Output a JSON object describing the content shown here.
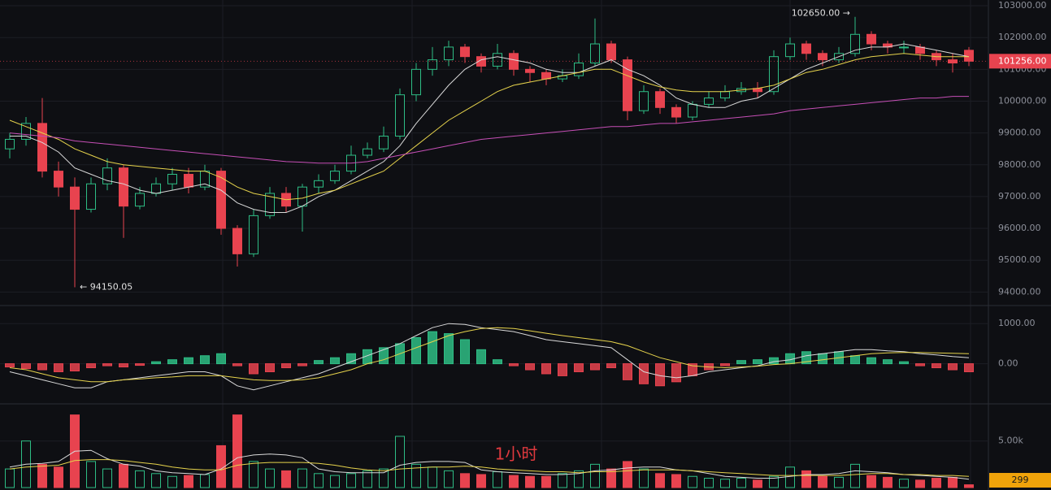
{
  "chart_data": [
    {
      "type": "candlestick",
      "open": [
        98500,
        98800,
        99300,
        97800,
        97300,
        96600,
        97400,
        97900,
        96700,
        97100,
        97400,
        97700,
        97300,
        97800,
        96000,
        95200,
        96400,
        97100,
        96700,
        97300,
        97500,
        97800,
        98300,
        98500,
        98900,
        100200,
        101000,
        101300,
        101700,
        101400,
        101100,
        101500,
        101000,
        100900,
        100700,
        100800,
        101200,
        101800,
        101300,
        99700,
        100300,
        99800,
        99500,
        99900,
        100100,
        100300,
        100400,
        100300,
        101400,
        101800,
        101500,
        101300,
        101500,
        102100,
        101800,
        101700,
        101700,
        101500,
        101300,
        101600
      ],
      "high": [
        99000,
        99500,
        100100,
        98100,
        97600,
        97600,
        98200,
        98000,
        97300,
        97600,
        97900,
        97900,
        98000,
        97900,
        96100,
        96600,
        97300,
        97300,
        97400,
        97700,
        98000,
        98600,
        98700,
        99200,
        100400,
        101200,
        101700,
        101900,
        101800,
        101500,
        101800,
        101600,
        101100,
        101000,
        101000,
        101500,
        102600,
        101900,
        101400,
        100500,
        100400,
        99900,
        100000,
        100300,
        100500,
        100600,
        100600,
        101600,
        102000,
        101900,
        101600,
        101700,
        102650,
        102200,
        101900,
        101900,
        101800,
        101600,
        101500,
        101700
      ],
      "low": [
        98200,
        98600,
        97600,
        97000,
        94150.05,
        96500,
        97200,
        95700,
        96600,
        97000,
        97200,
        97100,
        97200,
        95800,
        94800,
        95100,
        96300,
        96500,
        95900,
        97100,
        97400,
        97700,
        98200,
        98400,
        98800,
        100000,
        100800,
        101100,
        101200,
        100900,
        101000,
        100800,
        100600,
        100500,
        100600,
        100700,
        101100,
        101200,
        99400,
        99600,
        99600,
        99300,
        99400,
        99800,
        100000,
        100200,
        100100,
        100200,
        101300,
        101300,
        101100,
        101200,
        101400,
        101600,
        101500,
        101500,
        101300,
        101100,
        100900,
        101100
      ],
      "close": [
        98800,
        99300,
        97800,
        97300,
        96600,
        97400,
        97900,
        96700,
        97100,
        97400,
        97700,
        97300,
        97800,
        96000,
        95200,
        96400,
        97100,
        96700,
        97300,
        97500,
        97800,
        98300,
        98500,
        98900,
        100200,
        101000,
        101300,
        101700,
        101400,
        101100,
        101500,
        101000,
        100900,
        100700,
        100800,
        101200,
        101800,
        101300,
        99700,
        100300,
        99800,
        99500,
        99900,
        100100,
        100300,
        100400,
        100300,
        101400,
        101800,
        101500,
        101300,
        101500,
        102100,
        101800,
        101700,
        101700,
        101500,
        101300,
        101200,
        101256
      ],
      "up_color": "#2ebd85",
      "down_color": "#e8434f",
      "lines": [
        {
          "color": "#d9d9d9",
          "values": [
            98900,
            98900,
            98700,
            98400,
            97900,
            97700,
            97500,
            97400,
            97200,
            97100,
            97200,
            97300,
            97400,
            97200,
            96800,
            96600,
            96500,
            96500,
            96700,
            97000,
            97200,
            97500,
            97800,
            98100,
            98600,
            99300,
            99900,
            100500,
            101000,
            101300,
            101400,
            101300,
            101200,
            101000,
            100900,
            100900,
            101100,
            101300,
            101000,
            100800,
            100500,
            100100,
            99900,
            99800,
            99800,
            100000,
            100100,
            100400,
            100700,
            101000,
            101200,
            101400,
            101600,
            101700,
            101700,
            101800,
            101700,
            101600,
            101500,
            101400
          ]
        },
        {
          "color": "#e6d34c",
          "values": [
            99400,
            99200,
            99000,
            98800,
            98500,
            98300,
            98100,
            98000,
            97950,
            97900,
            97850,
            97800,
            97800,
            97600,
            97300,
            97100,
            97000,
            96900,
            96950,
            97100,
            97200,
            97400,
            97600,
            97800,
            98200,
            98600,
            99000,
            99400,
            99700,
            100000,
            100300,
            100500,
            100600,
            100700,
            100800,
            100900,
            101000,
            101000,
            100800,
            100600,
            100450,
            100350,
            100300,
            100300,
            100300,
            100350,
            100400,
            100500,
            100700,
            100900,
            101000,
            101150,
            101300,
            101400,
            101450,
            101500,
            101450,
            101400,
            101400,
            101400
          ]
        },
        {
          "color": "#c64fb6",
          "values": [
            99000,
            98950,
            98900,
            98850,
            98750,
            98700,
            98650,
            98600,
            98550,
            98500,
            98450,
            98400,
            98350,
            98300,
            98250,
            98200,
            98150,
            98100,
            98080,
            98050,
            98050,
            98050,
            98100,
            98200,
            98300,
            98400,
            98500,
            98600,
            98700,
            98800,
            98850,
            98900,
            98950,
            99000,
            99050,
            99100,
            99150,
            99200,
            99200,
            99250,
            99300,
            99300,
            99350,
            99400,
            99450,
            99500,
            99550,
            99600,
            99700,
            99750,
            99800,
            99850,
            99900,
            99950,
            100000,
            100050,
            100100,
            100100,
            100150,
            100150
          ]
        }
      ],
      "ylim": [
        93600,
        103180
      ],
      "yticks": [
        {
          "value": 94000,
          "label": "94000.00"
        },
        {
          "value": 95000,
          "label": "95000.00"
        },
        {
          "value": 96000,
          "label": "96000.00"
        },
        {
          "value": 97000,
          "label": "97000.00"
        },
        {
          "value": 98000,
          "label": "98000.00"
        },
        {
          "value": 99000,
          "label": "99000.00"
        },
        {
          "value": 100000,
          "label": "100000.00"
        },
        {
          "value": 101000,
          "label": "101000.00"
        },
        {
          "value": 102000,
          "label": "102000.00"
        },
        {
          "value": 103000,
          "label": "103000.00"
        }
      ],
      "grid": true,
      "annotations": [
        {
          "value": 102650,
          "label": "102650.00 →"
        },
        {
          "value": 94150.05,
          "label": "← 94150.05"
        }
      ],
      "last_price": {
        "value": 101256,
        "label": "101256.00",
        "color": "#e8434f"
      }
    },
    {
      "type": "bar",
      "color_by": "sign",
      "values": [
        -80,
        -120,
        -150,
        -200,
        -180,
        -100,
        -50,
        -80,
        -40,
        50,
        100,
        150,
        200,
        250,
        -50,
        -250,
        -200,
        -100,
        -50,
        80,
        150,
        250,
        350,
        400,
        500,
        650,
        800,
        750,
        600,
        350,
        100,
        -50,
        -150,
        -250,
        -300,
        -200,
        -150,
        -100,
        -400,
        -500,
        -550,
        -450,
        -300,
        -150,
        -50,
        80,
        100,
        150,
        250,
        300,
        250,
        300,
        200,
        150,
        100,
        50,
        -50,
        -100,
        -150,
        -200
      ],
      "up_color": "#2ebd85",
      "down_color": "#e8434f",
      "lines": [
        {
          "color": "#d9d9d9",
          "values": [
            -200,
            -300,
            -400,
            -500,
            -600,
            -600,
            -450,
            -400,
            -350,
            -300,
            -250,
            -200,
            -200,
            -300,
            -550,
            -650,
            -550,
            -450,
            -350,
            -250,
            -100,
            50,
            200,
            350,
            500,
            700,
            900,
            1000,
            980,
            900,
            850,
            800,
            700,
            600,
            550,
            500,
            450,
            400,
            100,
            -200,
            -300,
            -350,
            -300,
            -200,
            -150,
            -100,
            -50,
            50,
            100,
            200,
            250,
            300,
            350,
            350,
            320,
            300,
            250,
            220,
            180,
            150
          ]
        },
        {
          "color": "#e6d34c",
          "values": [
            -100,
            -150,
            -250,
            -350,
            -400,
            -450,
            -450,
            -400,
            -380,
            -350,
            -330,
            -300,
            -300,
            -300,
            -350,
            -400,
            -420,
            -420,
            -400,
            -350,
            -250,
            -150,
            0,
            100,
            250,
            400,
            550,
            700,
            800,
            880,
            900,
            880,
            820,
            760,
            700,
            650,
            600,
            550,
            450,
            300,
            150,
            50,
            -50,
            -80,
            -100,
            -80,
            -60,
            -20,
            0,
            50,
            100,
            150,
            200,
            250,
            270,
            280,
            280,
            270,
            260,
            250
          ]
        }
      ],
      "ylim": [
        -980,
        1430
      ],
      "yticks": [
        {
          "value": 0,
          "label": "0.00"
        },
        {
          "value": 1000,
          "label": "1000.00"
        }
      ],
      "grid": true
    },
    {
      "type": "bar",
      "color_by": "candle",
      "values": [
        2000,
        5000,
        2500,
        2200,
        7800,
        2800,
        2000,
        2500,
        1800,
        1500,
        1200,
        1300,
        1400,
        4500,
        7800,
        2800,
        2000,
        1800,
        2000,
        1500,
        1300,
        1500,
        1800,
        2000,
        5500,
        2500,
        2200,
        1800,
        1500,
        1400,
        1700,
        1300,
        1200,
        1200,
        1500,
        1800,
        2500,
        2000,
        2800,
        2000,
        1500,
        1400,
        1200,
        1000,
        900,
        1000,
        800,
        1200,
        2200,
        1800,
        1200,
        1100,
        2500,
        1300,
        1100,
        900,
        800,
        1000,
        1100,
        299
      ],
      "up_color": "#2ebd85",
      "down_color": "#e8434f",
      "lines": [
        {
          "color": "#d9d9d9",
          "values": [
            2200,
            2500,
            2600,
            2800,
            3900,
            4000,
            3100,
            2500,
            2300,
            1800,
            1600,
            1500,
            1400,
            2000,
            3200,
            3500,
            3600,
            3500,
            3200,
            2000,
            1700,
            1600,
            1600,
            1600,
            2400,
            2700,
            2800,
            2800,
            2700,
            1900,
            1700,
            1600,
            1500,
            1400,
            1400,
            1500,
            1800,
            1900,
            2100,
            2200,
            2200,
            1900,
            1800,
            1500,
            1200,
            1100,
            1000,
            1000,
            1200,
            1400,
            1400,
            1500,
            1800,
            1700,
            1600,
            1400,
            1300,
            1200,
            1100,
            900
          ]
        },
        {
          "color": "#e6d34c",
          "values": [
            2000,
            2200,
            2300,
            2400,
            2900,
            3000,
            3000,
            2900,
            2700,
            2500,
            2200,
            2000,
            1900,
            1900,
            2400,
            2600,
            2700,
            2700,
            2700,
            2600,
            2400,
            2100,
            1900,
            1800,
            2000,
            2100,
            2200,
            2200,
            2300,
            2200,
            2000,
            1900,
            1800,
            1700,
            1700,
            1600,
            1700,
            1700,
            1800,
            1900,
            1900,
            1900,
            1800,
            1700,
            1600,
            1500,
            1400,
            1300,
            1300,
            1300,
            1300,
            1300,
            1400,
            1500,
            1500,
            1400,
            1400,
            1300,
            1300,
            1200
          ]
        }
      ],
      "ylim": [
        0,
        8900
      ],
      "yticks": [
        {
          "value": 5000,
          "label": "5.00k"
        }
      ],
      "grid": true,
      "last_tag_color": "#f0a30a",
      "watermark": "1小时"
    }
  ]
}
